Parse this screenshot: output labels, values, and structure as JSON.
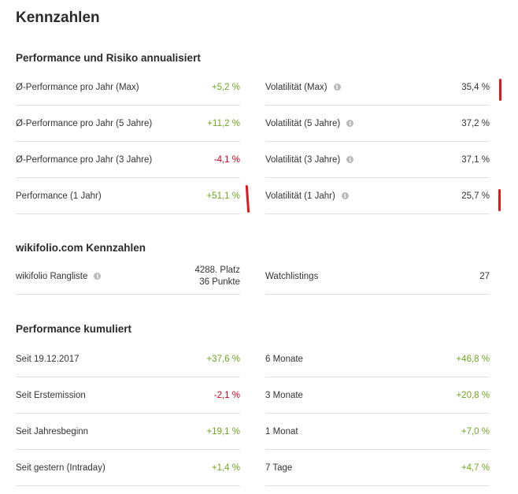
{
  "page_title": "Kennzahlen",
  "sections": {
    "risk": {
      "title": "Performance und Risiko annualisiert",
      "left_rows": [
        {
          "label": "Ø-Performance pro Jahr (Max)",
          "value": "+5,2 %",
          "sign": "pos"
        },
        {
          "label": "Ø-Performance pro Jahr (5 Jahre)",
          "value": "+11,2 %",
          "sign": "pos"
        },
        {
          "label": "Ø-Performance pro Jahr (3 Jahre)",
          "value": "-4,1 %",
          "sign": "neg"
        },
        {
          "label": "Performance (1 Jahr)",
          "value": "+51,1 %",
          "sign": "pos"
        }
      ],
      "right_rows": [
        {
          "label": "Volatilität (Max)",
          "value": "35,4 %",
          "info": true
        },
        {
          "label": "Volatilität (5 Jahre)",
          "value": "37,2 %",
          "info": true
        },
        {
          "label": "Volatilität (3 Jahre)",
          "value": "37,1 %",
          "info": true
        },
        {
          "label": "Volatilität (1 Jahr)",
          "value": "25,7 %",
          "info": true
        }
      ]
    },
    "wikifolio": {
      "title": "wikifolio.com Kennzahlen",
      "ranking_label": "wikifolio Rangliste",
      "ranking_place": "4288. Platz",
      "ranking_points": "36 Punkte",
      "watchlist_label": "Watchlistings",
      "watchlist_value": "27"
    },
    "cumulative": {
      "title": "Performance kumuliert",
      "left_rows": [
        {
          "label": "Seit 19.12.2017",
          "value": "+37,6 %",
          "sign": "pos"
        },
        {
          "label": "Seit Erstemission",
          "value": "-2,1 %",
          "sign": "neg"
        },
        {
          "label": "Seit Jahresbeginn",
          "value": "+19,1 %",
          "sign": "pos"
        },
        {
          "label": "Seit gestern (Intraday)",
          "value": "+1,4 %",
          "sign": "pos"
        }
      ],
      "right_rows": [
        {
          "label": "6 Monate",
          "value": "+46,8 %",
          "sign": "pos"
        },
        {
          "label": "3 Monate",
          "value": "+20,8 %",
          "sign": "pos"
        },
        {
          "label": "1 Monat",
          "value": "+7,0 %",
          "sign": "pos"
        },
        {
          "label": "7 Tage",
          "value": "+4,7 %",
          "sign": "pos"
        }
      ]
    }
  },
  "icons": {
    "info": "info-icon"
  },
  "colors": {
    "positive": "#6ea51e",
    "negative": "#d0021b",
    "marker": "#e3171b"
  }
}
